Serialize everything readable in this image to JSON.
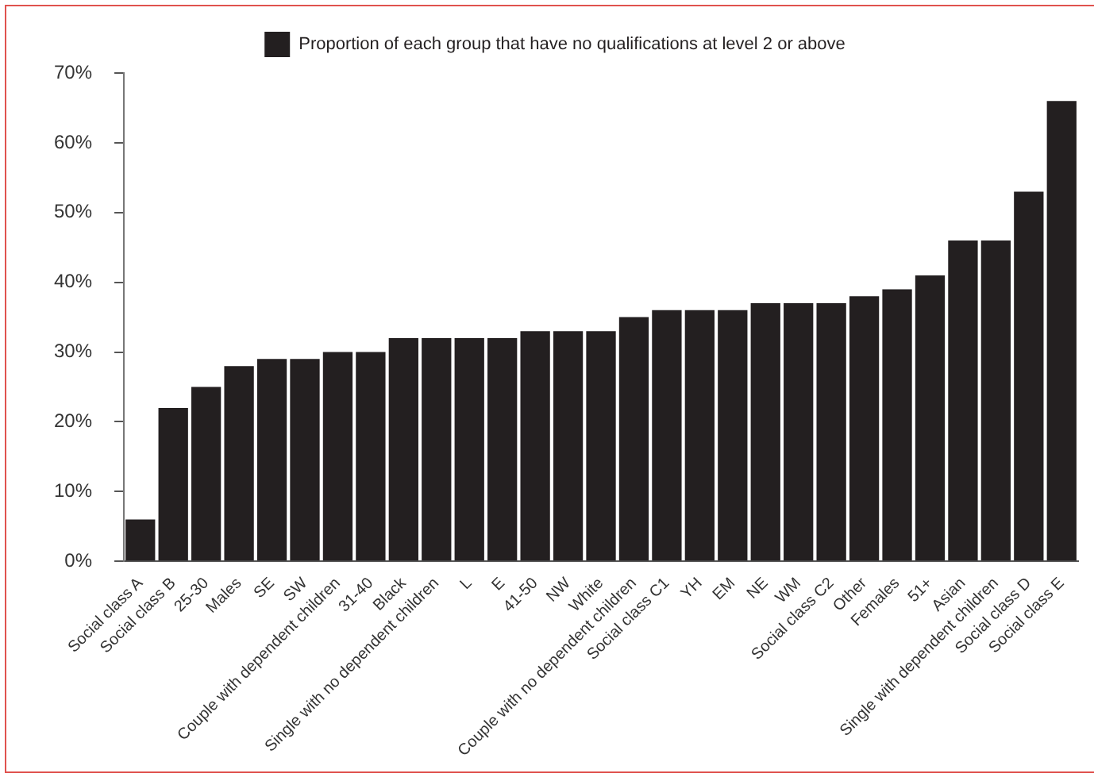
{
  "chart_data": {
    "type": "bar",
    "categories": [
      "Social class A",
      "Social class B",
      "25-30",
      "Males",
      "SE",
      "SW",
      "Couple with dependent children",
      "31-40",
      "Black",
      "Single with no dependent children",
      "L",
      "E",
      "41-50",
      "NW",
      "White",
      "Couple with no dependent children",
      "Social class C1",
      "YH",
      "EM",
      "NE",
      "WM",
      "Social class C2",
      "Other",
      "Females",
      "51+",
      "Asian",
      "Single with dependent children",
      "Social class D",
      "Social class E"
    ],
    "series": [
      {
        "name": "Proportion of each group that have no qualifications at level 2 or above",
        "color": "#231f20",
        "values": [
          6,
          22,
          25,
          28,
          29,
          29,
          30,
          30,
          32,
          32,
          32,
          32,
          33,
          33,
          33,
          35,
          36,
          36,
          36,
          37,
          37,
          37,
          38,
          39,
          41,
          46,
          46,
          53,
          66
        ]
      }
    ],
    "ylim": [
      0,
      70
    ],
    "yticks": [
      {
        "value": 0,
        "label": "0%"
      },
      {
        "value": 10,
        "label": "10%"
      },
      {
        "value": 20,
        "label": "20%"
      },
      {
        "value": 30,
        "label": "30%"
      },
      {
        "value": 40,
        "label": "40%"
      },
      {
        "value": 50,
        "label": "50%"
      },
      {
        "value": 60,
        "label": "60%"
      },
      {
        "value": 70,
        "label": "70%"
      }
    ],
    "grid": false,
    "legend": "top"
  }
}
